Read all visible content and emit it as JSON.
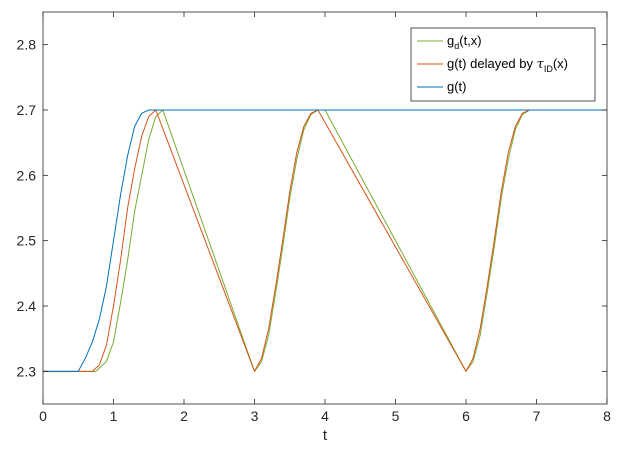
{
  "chart_data": {
    "type": "line",
    "xlabel": "t",
    "ylabel": "",
    "title": "",
    "xlim": [
      0,
      8
    ],
    "ylim": [
      2.25,
      2.85
    ],
    "xticks": [
      "0",
      "1",
      "2",
      "3",
      "4",
      "5",
      "6",
      "7",
      "8"
    ],
    "yticks": [
      "2.3",
      "2.4",
      "2.5",
      "2.6",
      "2.7",
      "2.8"
    ],
    "grid": false,
    "legend_position": "top-right",
    "legend": {
      "gd": {
        "main": "g",
        "sub": "d",
        "rest": "(t,x)"
      },
      "delayed": {
        "prefix": "g(t) delayed by ",
        "symbol": "τ",
        "sub": "ID",
        "rest": "(x)"
      },
      "g": {
        "text": "g(t)"
      }
    },
    "series": [
      {
        "key": "gd",
        "color": "#77AC30",
        "x": [
          0,
          0.75,
          0.9,
          1.0,
          1.1,
          1.2,
          1.3,
          1.4,
          1.5,
          1.6,
          1.7,
          3.0,
          3.1,
          3.2,
          3.3,
          3.4,
          3.5,
          3.6,
          3.7,
          3.8,
          3.9,
          4.0,
          6.0,
          6.1,
          6.2,
          6.3,
          6.4,
          6.5,
          6.6,
          6.7,
          6.8,
          6.9,
          7.0,
          8.0
        ],
        "y": [
          2.3,
          2.3,
          2.315,
          2.345,
          2.405,
          2.47,
          2.545,
          2.6,
          2.655,
          2.69,
          2.7,
          2.3,
          2.315,
          2.355,
          2.42,
          2.49,
          2.565,
          2.625,
          2.67,
          2.693,
          2.7,
          2.7,
          2.3,
          2.315,
          2.355,
          2.42,
          2.49,
          2.565,
          2.625,
          2.67,
          2.693,
          2.7,
          2.7,
          2.7
        ]
      },
      {
        "key": "delayed",
        "color": "#D95319",
        "x": [
          0,
          0.7,
          0.8,
          0.9,
          1.0,
          1.1,
          1.2,
          1.3,
          1.4,
          1.5,
          1.6,
          3.0,
          3.1,
          3.2,
          3.3,
          3.4,
          3.5,
          3.6,
          3.7,
          3.8,
          3.9,
          6.0,
          6.1,
          6.2,
          6.3,
          6.4,
          6.5,
          6.6,
          6.7,
          6.8,
          6.9,
          8.0
        ],
        "y": [
          2.3,
          2.3,
          2.31,
          2.34,
          2.4,
          2.47,
          2.55,
          2.61,
          2.66,
          2.69,
          2.7,
          2.3,
          2.32,
          2.365,
          2.43,
          2.5,
          2.575,
          2.635,
          2.675,
          2.695,
          2.7,
          2.3,
          2.32,
          2.365,
          2.43,
          2.5,
          2.575,
          2.635,
          2.675,
          2.695,
          2.7,
          2.7
        ]
      },
      {
        "key": "g",
        "color": "#0072BD",
        "x": [
          0,
          0.5,
          0.6,
          0.7,
          0.8,
          0.9,
          1.0,
          1.1,
          1.2,
          1.3,
          1.4,
          1.5,
          8.0
        ],
        "y": [
          2.3,
          2.3,
          2.32,
          2.345,
          2.38,
          2.43,
          2.5,
          2.57,
          2.63,
          2.675,
          2.695,
          2.7,
          2.7
        ]
      }
    ]
  }
}
